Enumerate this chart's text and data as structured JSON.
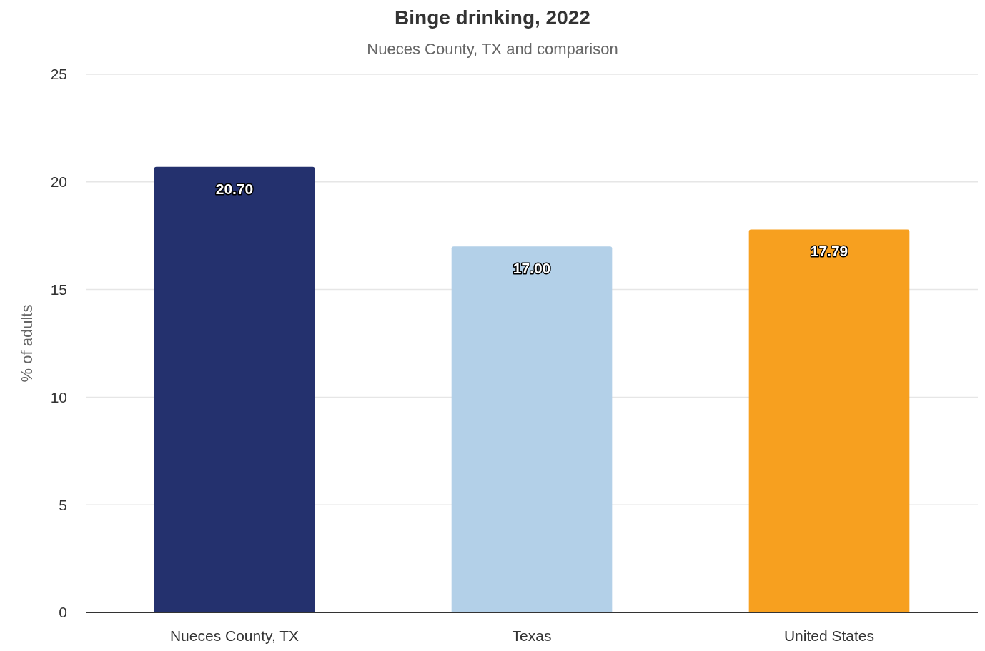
{
  "chart_data": {
    "type": "bar",
    "title": "Binge drinking, 2022",
    "subtitle": "Nueces County, TX and comparison",
    "ylabel": "% of adults",
    "categories": [
      "Nueces County, TX",
      "Texas",
      "United States"
    ],
    "values": [
      20.7,
      17.0,
      17.79
    ],
    "value_labels": [
      "20.70",
      "17.00",
      "17.79"
    ],
    "colors": [
      "#24316e",
      "#b3d0e8",
      "#f7a01f"
    ],
    "ylim": [
      0,
      25
    ],
    "yticks": [
      0,
      5,
      10,
      15,
      20,
      25
    ],
    "grid": "y"
  }
}
